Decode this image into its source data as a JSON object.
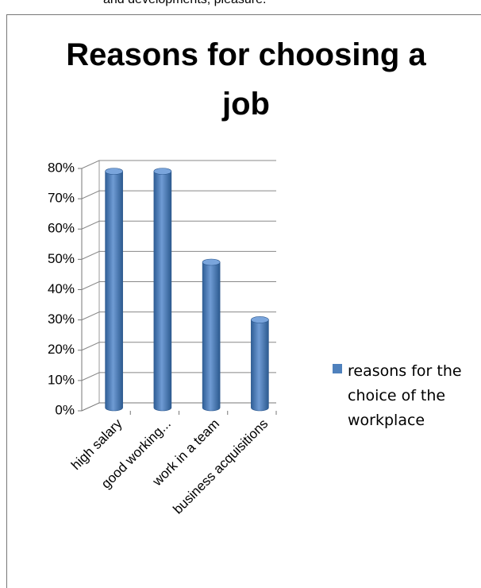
{
  "page_text": "and developments, pleasure.",
  "chart_data": {
    "type": "bar3d",
    "title": "Reasons for choosing a job",
    "categories": [
      "high salary",
      "good working...",
      "work in a team",
      "business acquisitions"
    ],
    "series": [
      {
        "name": "reasons for the choice of the workplace",
        "color": "#4f81bd",
        "values": [
          78,
          78,
          48,
          29
        ]
      }
    ],
    "ylim": [
      0,
      80
    ],
    "yticks": [
      {
        "value": 0,
        "label": "0%"
      },
      {
        "value": 10,
        "label": "10%"
      },
      {
        "value": 20,
        "label": "20%"
      },
      {
        "value": 30,
        "label": "30%"
      },
      {
        "value": 40,
        "label": "40%"
      },
      {
        "value": 50,
        "label": "50%"
      },
      {
        "value": 60,
        "label": "60%"
      },
      {
        "value": 70,
        "label": "70%"
      },
      {
        "value": 80,
        "label": "80%"
      }
    ],
    "grid": true,
    "legend": "right"
  }
}
